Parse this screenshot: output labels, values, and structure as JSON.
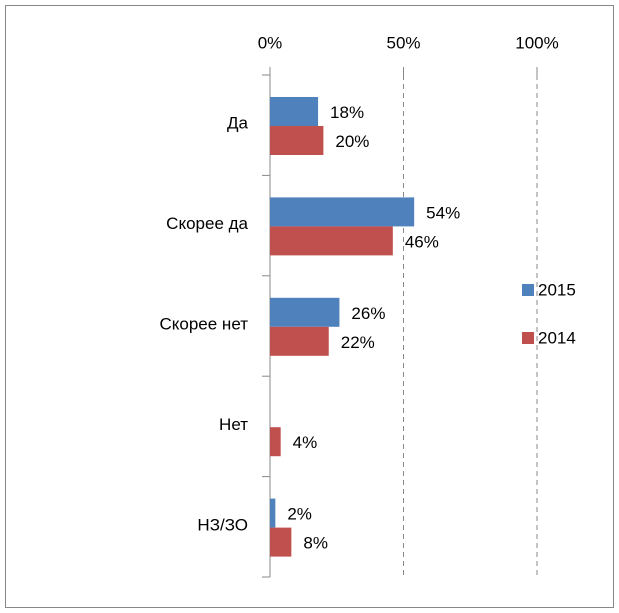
{
  "chart_data": {
    "type": "bar",
    "orientation": "horizontal",
    "categories": [
      "Да",
      "Скорее да",
      "Скорее нет",
      "Нет",
      "НЗ/ЗО"
    ],
    "series": [
      {
        "name": "2015",
        "color": "#4f81bd",
        "values": [
          18,
          54,
          26,
          null,
          2
        ],
        "value_labels": [
          "18%",
          "54%",
          "26%",
          null,
          "2%"
        ]
      },
      {
        "name": "2014",
        "color": "#c0504d",
        "values": [
          20,
          46,
          22,
          4,
          8
        ],
        "value_labels": [
          "20%",
          "46%",
          "22%",
          "4%",
          "8%"
        ]
      }
    ],
    "xlim": [
      0,
      100
    ],
    "xticks": [
      {
        "value": 0,
        "label": "0%"
      },
      {
        "value": 50,
        "label": "50%"
      },
      {
        "value": 100,
        "label": "100%"
      }
    ],
    "grid": true,
    "legend": "right"
  }
}
